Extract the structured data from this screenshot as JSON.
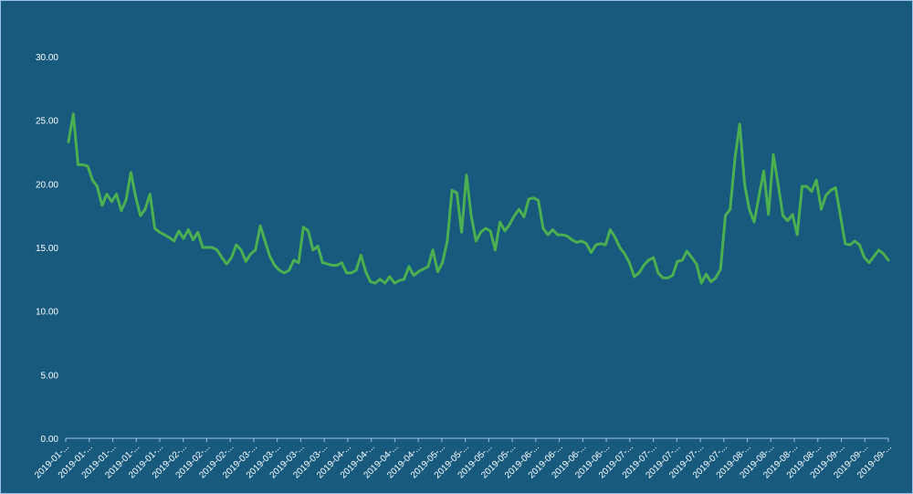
{
  "chart_data": {
    "type": "line",
    "title": "",
    "xlabel": "",
    "ylabel": "",
    "ylim": [
      0,
      30
    ],
    "y_ticks": [
      "0.00",
      "5.00",
      "10.00",
      "15.00",
      "20.00",
      "25.00",
      "30.00"
    ],
    "x_tick_labels": [
      "2019-01-...",
      "2019-01-...",
      "2019-01-...",
      "2019-01-...",
      "2019-01-...",
      "2019-02-...",
      "2019-02-...",
      "2019-02-...",
      "2019-03-...",
      "2019-03-...",
      "2019-03-...",
      "2019-03-...",
      "2019-04-...",
      "2019-04-...",
      "2019-04-...",
      "2019-04-...",
      "2019-05-...",
      "2019-05-...",
      "2019-05-...",
      "2019-05-...",
      "2019-06-...",
      "2019-06-...",
      "2019-06-...",
      "2019-06-...",
      "2019-07-...",
      "2019-07-...",
      "2019-07-...",
      "2019-07-...",
      "2019-07-...",
      "2019-08-...",
      "2019-08-...",
      "2019-08-...",
      "2019-08-...",
      "2019-09-...",
      "2019-09-...",
      "2019-09-..."
    ],
    "grid": false,
    "series": [
      {
        "line_color": "#4caf50",
        "values": [
          23.3,
          25.5,
          21.5,
          21.5,
          21.4,
          20.3,
          19.8,
          18.3,
          19.2,
          18.6,
          19.2,
          17.9,
          18.7,
          20.9,
          19.0,
          17.5,
          18.0,
          19.2,
          16.5,
          16.2,
          16.0,
          15.8,
          15.5,
          16.3,
          15.7,
          16.4,
          15.6,
          16.2,
          15.0,
          15.0,
          15.0,
          14.8,
          14.2,
          13.7,
          14.2,
          15.2,
          14.8,
          13.9,
          14.5,
          14.8,
          16.7,
          15.5,
          14.3,
          13.6,
          13.2,
          13.0,
          13.2,
          14.0,
          13.8,
          16.6,
          16.3,
          14.8,
          15.1,
          13.8,
          13.7,
          13.6,
          13.6,
          13.8,
          13.0,
          13.0,
          13.2,
          14.4,
          13.1,
          12.3,
          12.2,
          12.5,
          12.2,
          12.7,
          12.2,
          12.4,
          12.5,
          13.5,
          12.8,
          13.1,
          13.3,
          13.5,
          14.8,
          13.1,
          13.8,
          15.5,
          19.5,
          19.3,
          16.2,
          20.7,
          17.5,
          15.5,
          16.2,
          16.5,
          16.3,
          14.8,
          17.0,
          16.3,
          16.8,
          17.5,
          18.0,
          17.4,
          18.8,
          18.9,
          18.7,
          16.5,
          16.0,
          16.4,
          16.0,
          16.0,
          15.9,
          15.6,
          15.4,
          15.5,
          15.3,
          14.6,
          15.2,
          15.3,
          15.2,
          16.4,
          15.8,
          15.0,
          14.5,
          13.8,
          12.7,
          13.0,
          13.6,
          14.0,
          14.2,
          13.0,
          12.6,
          12.6,
          12.8,
          13.9,
          14.0,
          14.7,
          14.2,
          13.7,
          12.2,
          12.9,
          12.3,
          12.6,
          13.3,
          17.5,
          18.0,
          22.0,
          24.7,
          20.0,
          18.0,
          17.0,
          19.0,
          21.0,
          17.6,
          22.3,
          20.0,
          17.5,
          17.1,
          17.6,
          16.0,
          19.8,
          19.8,
          19.4,
          20.3,
          18.0,
          19.1,
          19.5,
          19.7,
          17.5,
          15.3,
          15.2,
          15.5,
          15.2,
          14.2,
          13.8,
          14.3,
          14.8,
          14.5,
          14.0
        ]
      }
    ]
  }
}
